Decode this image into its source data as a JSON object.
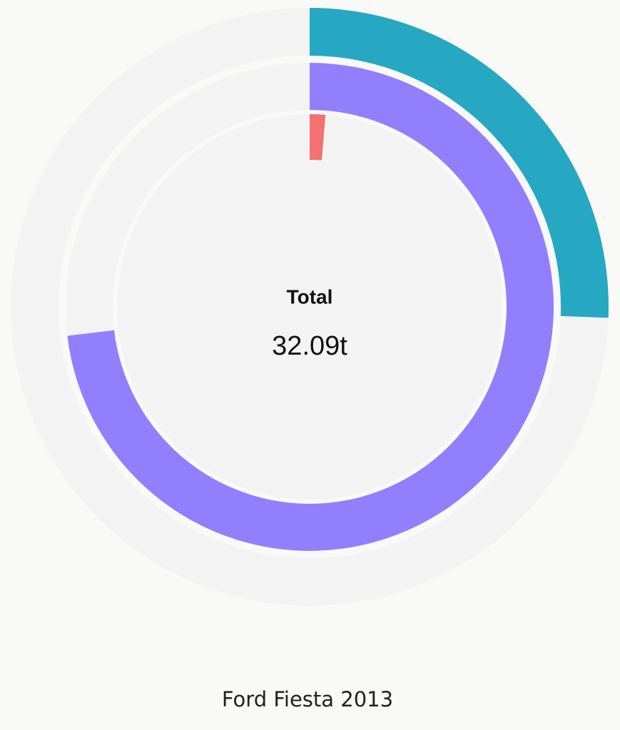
{
  "chart_data": {
    "type": "radial-bar",
    "title": "Ford Fiesta 2013",
    "center_title": "Total",
    "total": {
      "value": 32.09,
      "label": "32.09t"
    },
    "values": [
      8.21,
      23.46,
      0.42
    ],
    "colors": [
      "#26a8c2",
      "#927ffe",
      "#f57070"
    ],
    "track_color": "#f3f3f3"
  }
}
